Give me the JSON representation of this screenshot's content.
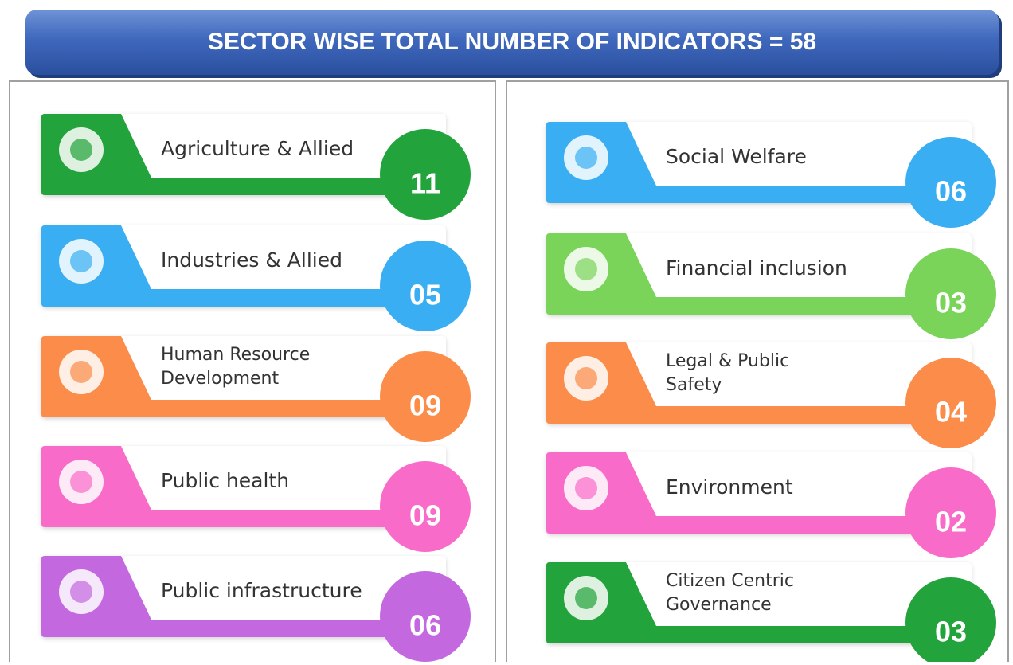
{
  "title": "SECTOR WISE TOTAL NUMBER OF INDICATORS = 58",
  "panels": [
    {
      "sectors": [
        {
          "label": [
            "Agriculture & Allied"
          ],
          "count": "11",
          "color": "#22a33b"
        },
        {
          "label": [
            "Industries & Allied"
          ],
          "count": "05",
          "color": "#3aaef2"
        },
        {
          "label": [
            "Human Resource",
            "Development"
          ],
          "count": "09",
          "color": "#fb8c4a"
        },
        {
          "label": [
            "Public health"
          ],
          "count": "09",
          "color": "#f96bc8"
        },
        {
          "label": [
            "Public infrastructure"
          ],
          "count": "06",
          "color": "#c468e0"
        }
      ]
    },
    {
      "sectors": [
        {
          "label": [
            "Social Welfare"
          ],
          "count": "06",
          "color": "#3aaef2"
        },
        {
          "label": [
            "Financial inclusion"
          ],
          "count": "03",
          "color": "#7ad45a"
        },
        {
          "label": [
            "Legal & Public",
            "Safety"
          ],
          "count": "04",
          "color": "#fb8c4a"
        },
        {
          "label": [
            "Environment"
          ],
          "count": "02",
          "color": "#f96bc8"
        },
        {
          "label": [
            "Citizen Centric",
            "Governance"
          ],
          "count": "03",
          "color": "#22a33b"
        }
      ]
    }
  ]
}
